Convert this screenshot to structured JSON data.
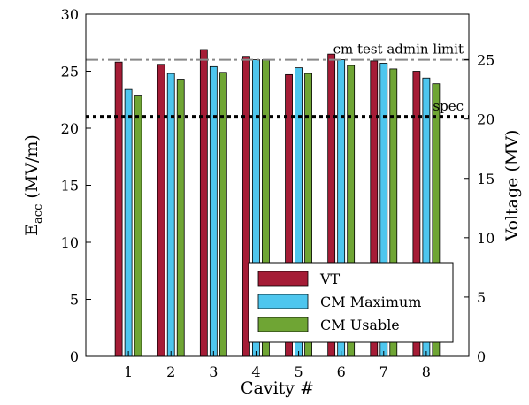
{
  "chart_data": {
    "type": "bar",
    "xlabel": "Cavity #",
    "ylabel_main": "E",
    "ylabel_sub": "acc",
    "ylabel_unit": " (MV/m)",
    "y2label": "Voltage (MV)",
    "categories": [
      "1",
      "2",
      "3",
      "4",
      "5",
      "6",
      "7",
      "8"
    ],
    "ylim": [
      0,
      30
    ],
    "yticks": [
      0,
      5,
      10,
      15,
      20,
      25,
      30
    ],
    "y2ticks": [
      0,
      5,
      10,
      15,
      20,
      25
    ],
    "volts_per_mvm": 0.9615,
    "xlim": [
      0,
      9
    ],
    "series": [
      {
        "name": "VT",
        "color": "#a51c36",
        "values": [
          25.8,
          25.6,
          26.9,
          26.3,
          24.7,
          26.5,
          25.9,
          25.0
        ]
      },
      {
        "name": "CM Maximum",
        "color": "#4ec6ee",
        "values": [
          23.4,
          24.8,
          25.4,
          26.0,
          25.3,
          26.0,
          25.7,
          24.4
        ]
      },
      {
        "name": "CM Usable",
        "color": "#6fa534",
        "values": [
          22.9,
          24.3,
          24.9,
          26.0,
          24.8,
          25.5,
          25.2,
          23.9
        ]
      }
    ],
    "reference_lines": [
      {
        "label": "cm test admin limit",
        "value": 26.0,
        "color": "#888888",
        "style": "dashdot"
      },
      {
        "label": "spec",
        "value": 21.0,
        "color": "#000000",
        "style": "dotted"
      }
    ],
    "legend_position": "bottom-right",
    "grid": false
  }
}
